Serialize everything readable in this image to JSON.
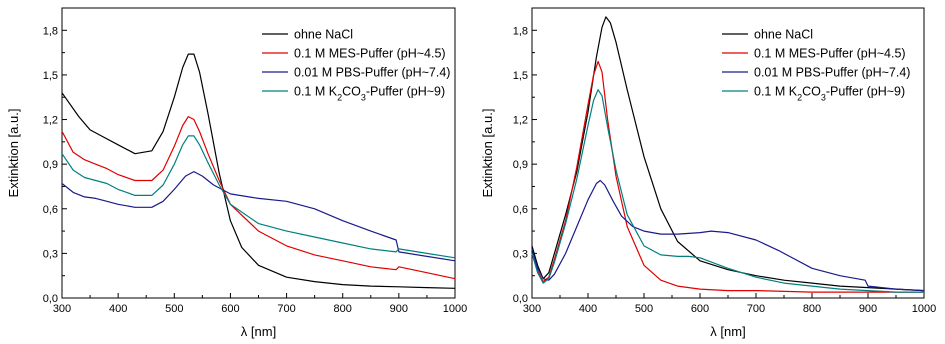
{
  "chart_data": [
    {
      "type": "line",
      "xlabel": "λ [nm]",
      "ylabel": "Extinktion [a.u.]",
      "xlim": [
        300,
        1000
      ],
      "ylim": [
        0,
        1.95
      ],
      "xticks": [
        "300",
        "400",
        "500",
        "600",
        "700",
        "800",
        "900",
        "1000"
      ],
      "yticks": [
        "0,0",
        "0,3",
        "0,6",
        "0,9",
        "1,2",
        "1,5",
        "1,8"
      ],
      "grid": false,
      "legend_position": "top-right",
      "series": [
        {
          "name": "ohne NaCl",
          "color": "#000000",
          "x": [
            300,
            330,
            350,
            370,
            400,
            430,
            460,
            480,
            500,
            515,
            525,
            535,
            545,
            560,
            580,
            600,
            620,
            650,
            700,
            750,
            800,
            850,
            900,
            950,
            1000
          ],
          "y": [
            1.38,
            1.22,
            1.13,
            1.09,
            1.03,
            0.97,
            0.99,
            1.12,
            1.35,
            1.55,
            1.64,
            1.64,
            1.52,
            1.24,
            0.84,
            0.52,
            0.34,
            0.22,
            0.14,
            0.11,
            0.09,
            0.08,
            0.075,
            0.07,
            0.065
          ]
        },
        {
          "name": "0.1 M MES-Puffer (pH~4.5)",
          "color": "#e00000",
          "x": [
            300,
            320,
            340,
            360,
            380,
            400,
            430,
            460,
            480,
            500,
            515,
            525,
            535,
            545,
            560,
            580,
            600,
            650,
            700,
            750,
            800,
            850,
            895,
            900,
            950,
            1000
          ],
          "y": [
            1.12,
            0.98,
            0.93,
            0.9,
            0.87,
            0.83,
            0.79,
            0.79,
            0.86,
            1.02,
            1.16,
            1.22,
            1.2,
            1.12,
            0.97,
            0.79,
            0.63,
            0.45,
            0.35,
            0.29,
            0.25,
            0.21,
            0.19,
            0.21,
            0.17,
            0.13
          ]
        },
        {
          "name": "0.01 M PBS-Puffer (pH~7.4)",
          "color": "#1a1a8c",
          "x": [
            300,
            320,
            340,
            360,
            380,
            400,
            430,
            460,
            480,
            500,
            520,
            535,
            550,
            570,
            600,
            650,
            700,
            750,
            800,
            850,
            895,
            900,
            950,
            1000
          ],
          "y": [
            0.77,
            0.71,
            0.68,
            0.67,
            0.65,
            0.63,
            0.61,
            0.61,
            0.65,
            0.73,
            0.82,
            0.85,
            0.82,
            0.76,
            0.7,
            0.67,
            0.65,
            0.6,
            0.52,
            0.45,
            0.39,
            0.31,
            0.28,
            0.25
          ]
        },
        {
          "name": "0.1 M K2CO3-Puffer (pH~9)",
          "color": "#008080",
          "x": [
            300,
            320,
            340,
            360,
            380,
            400,
            430,
            460,
            480,
            500,
            515,
            525,
            535,
            545,
            560,
            580,
            600,
            650,
            700,
            750,
            800,
            850,
            895,
            900,
            950,
            1000
          ],
          "y": [
            0.97,
            0.86,
            0.81,
            0.79,
            0.77,
            0.73,
            0.69,
            0.69,
            0.76,
            0.9,
            1.03,
            1.09,
            1.09,
            1.03,
            0.91,
            0.76,
            0.63,
            0.5,
            0.45,
            0.41,
            0.37,
            0.33,
            0.31,
            0.33,
            0.3,
            0.27
          ]
        }
      ]
    },
    {
      "type": "line",
      "xlabel": "λ [nm]",
      "ylabel": "Extinktion [a.u.]",
      "xlim": [
        300,
        1000
      ],
      "ylim": [
        0,
        1.95
      ],
      "xticks": [
        "300",
        "400",
        "500",
        "600",
        "700",
        "800",
        "900",
        "1000"
      ],
      "yticks": [
        "0,0",
        "0,3",
        "0,6",
        "0,9",
        "1,2",
        "1,5",
        "1,8"
      ],
      "grid": false,
      "legend_position": "top-right",
      "series": [
        {
          "name": "ohne NaCl",
          "color": "#000000",
          "x": [
            300,
            310,
            320,
            330,
            340,
            360,
            380,
            400,
            415,
            425,
            432,
            440,
            450,
            470,
            500,
            530,
            560,
            600,
            650,
            700,
            750,
            800,
            850,
            900,
            950,
            1000
          ],
          "y": [
            0.35,
            0.22,
            0.13,
            0.17,
            0.3,
            0.56,
            0.85,
            1.25,
            1.62,
            1.82,
            1.89,
            1.85,
            1.72,
            1.4,
            0.95,
            0.6,
            0.38,
            0.25,
            0.19,
            0.15,
            0.12,
            0.1,
            0.08,
            0.07,
            0.06,
            0.05
          ]
        },
        {
          "name": "0.1 M MES-Puffer (pH~4.5)",
          "color": "#e00000",
          "x": [
            300,
            310,
            320,
            330,
            340,
            360,
            380,
            400,
            410,
            418,
            425,
            435,
            450,
            470,
            500,
            530,
            560,
            600,
            650,
            700,
            800,
            900,
            1000
          ],
          "y": [
            0.3,
            0.18,
            0.11,
            0.14,
            0.26,
            0.52,
            0.88,
            1.3,
            1.5,
            1.59,
            1.52,
            1.2,
            0.82,
            0.48,
            0.22,
            0.12,
            0.08,
            0.06,
            0.05,
            0.05,
            0.04,
            0.04,
            0.04
          ]
        },
        {
          "name": "0.01 M PBS-Puffer (pH~7.4)",
          "color": "#1a1a8c",
          "x": [
            300,
            310,
            320,
            330,
            340,
            360,
            380,
            400,
            415,
            422,
            430,
            445,
            460,
            480,
            500,
            530,
            560,
            600,
            620,
            650,
            700,
            740,
            760,
            800,
            850,
            895,
            900,
            950,
            1000
          ],
          "y": [
            0.33,
            0.2,
            0.13,
            0.12,
            0.16,
            0.3,
            0.48,
            0.66,
            0.77,
            0.79,
            0.76,
            0.65,
            0.55,
            0.48,
            0.45,
            0.43,
            0.43,
            0.44,
            0.45,
            0.44,
            0.39,
            0.32,
            0.28,
            0.2,
            0.15,
            0.12,
            0.08,
            0.06,
            0.05
          ]
        },
        {
          "name": "0.1 M K2CO3-Puffer (pH~9)",
          "color": "#008080",
          "x": [
            300,
            310,
            320,
            330,
            340,
            360,
            380,
            400,
            410,
            418,
            425,
            435,
            450,
            470,
            500,
            530,
            560,
            580,
            600,
            650,
            700,
            750,
            800,
            850,
            900,
            950,
            1000
          ],
          "y": [
            0.3,
            0.17,
            0.1,
            0.13,
            0.24,
            0.5,
            0.8,
            1.16,
            1.33,
            1.4,
            1.36,
            1.15,
            0.86,
            0.56,
            0.35,
            0.29,
            0.28,
            0.28,
            0.27,
            0.2,
            0.14,
            0.1,
            0.08,
            0.06,
            0.05,
            0.04,
            0.04
          ]
        }
      ]
    }
  ]
}
